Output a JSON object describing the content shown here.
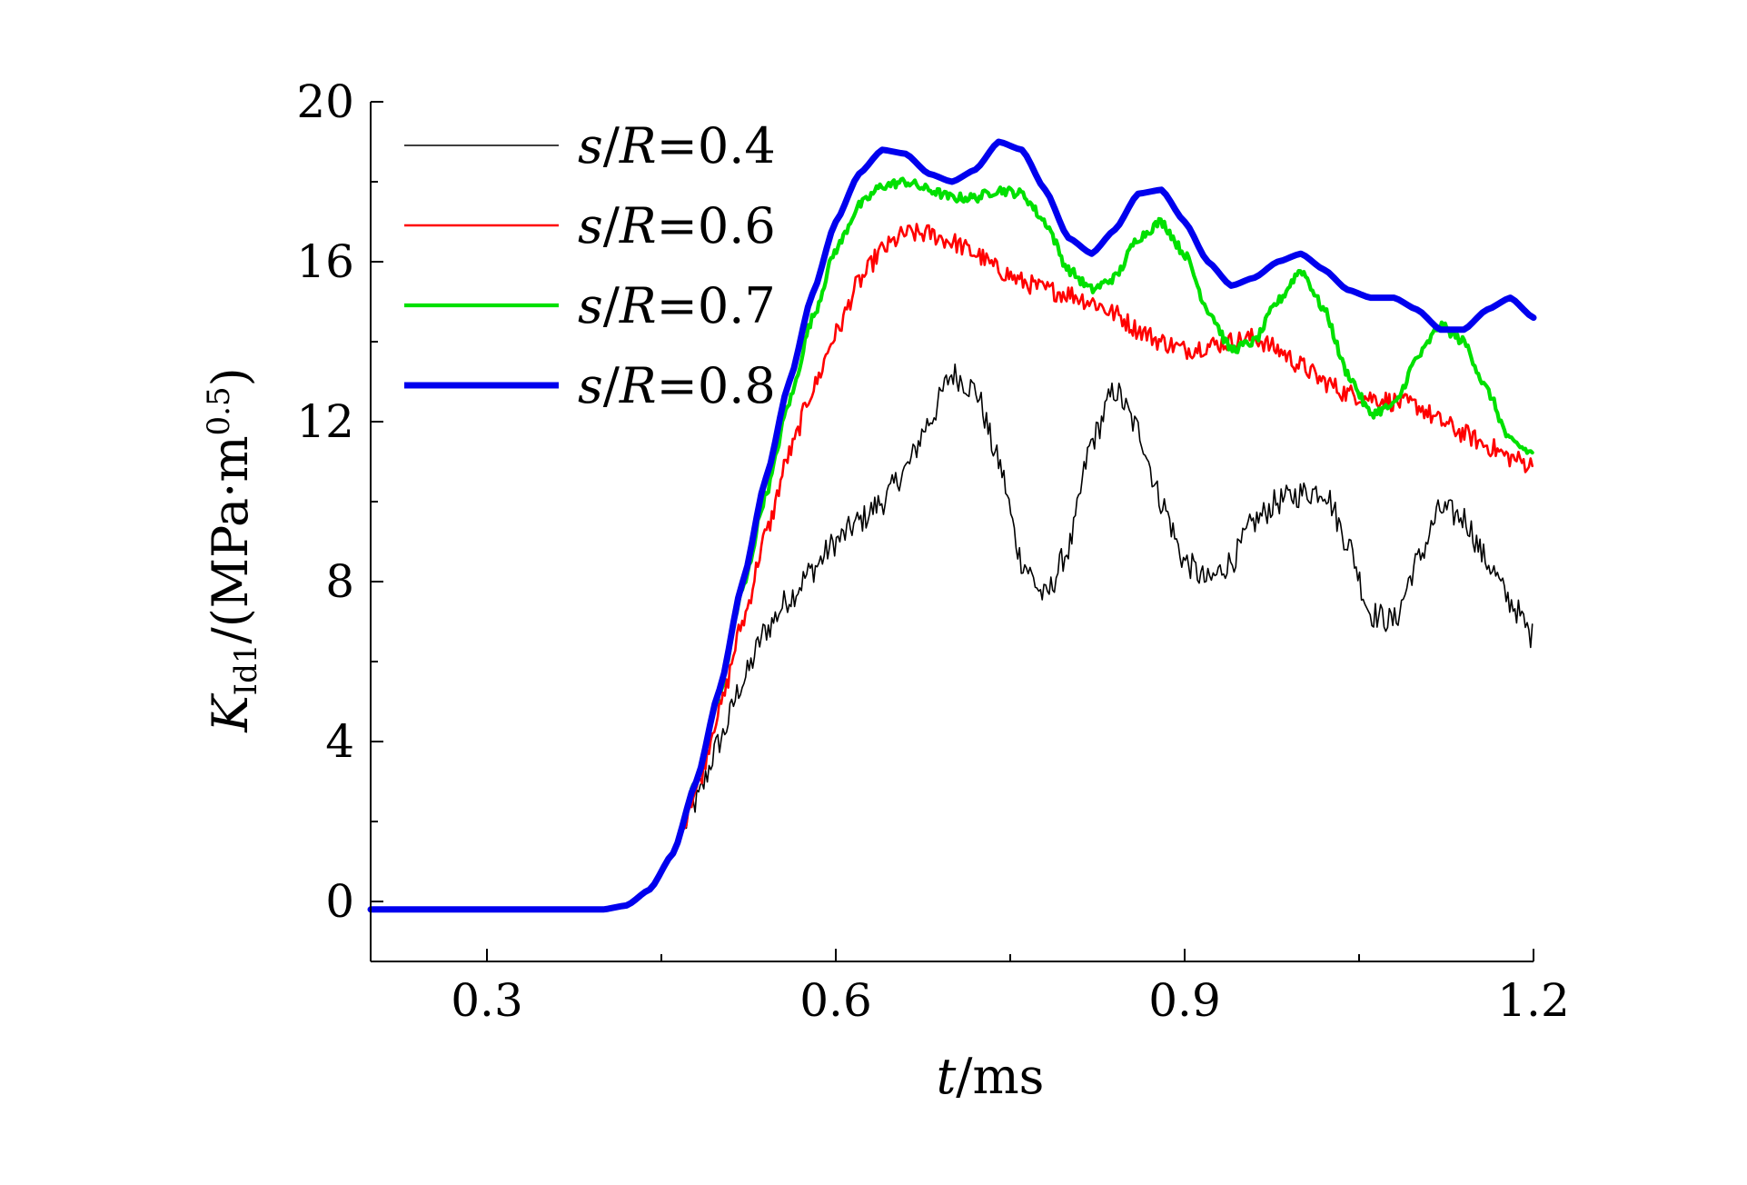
{
  "chart_data": {
    "type": "line",
    "xlabel": {
      "var": "t",
      "unit": "/ms"
    },
    "ylabel": {
      "var": "K",
      "sub": "Id1",
      "unit_pre": "/(MPa·m",
      "sup": "0.5",
      "unit_post": ")"
    },
    "xlim": [
      0.2,
      1.2
    ],
    "ylim": [
      -1.5,
      20
    ],
    "x_ticks": [
      0.3,
      0.6,
      0.9,
      1.2
    ],
    "x_tick_labels": [
      "0.3",
      "0.6",
      "0.9",
      "1.2"
    ],
    "y_ticks": [
      0,
      4,
      8,
      12,
      16,
      20
    ],
    "y_tick_labels": [
      "0",
      "4",
      "8",
      "12",
      "16",
      "20"
    ],
    "grid": false,
    "legend_position": "top-left",
    "series": [
      {
        "name": "s/R=0.4",
        "legend": {
          "var1": "s",
          "sep": "/",
          "var2": "R",
          "rest": "=0.4"
        },
        "color": "#000000",
        "line_width": "thin",
        "noise": 0.35,
        "points": [
          [
            0.2,
            -0.2
          ],
          [
            0.4,
            -0.2
          ],
          [
            0.42,
            -0.1
          ],
          [
            0.44,
            0.3
          ],
          [
            0.46,
            1.2
          ],
          [
            0.48,
            2.5
          ],
          [
            0.5,
            4.0
          ],
          [
            0.52,
            5.5
          ],
          [
            0.54,
            6.8
          ],
          [
            0.56,
            7.6
          ],
          [
            0.58,
            8.3
          ],
          [
            0.6,
            9.0
          ],
          [
            0.62,
            9.5
          ],
          [
            0.64,
            10.0
          ],
          [
            0.66,
            10.8
          ],
          [
            0.68,
            12.0
          ],
          [
            0.7,
            13.2
          ],
          [
            0.72,
            12.8
          ],
          [
            0.74,
            11.0
          ],
          [
            0.76,
            8.5
          ],
          [
            0.78,
            7.6
          ],
          [
            0.8,
            8.8
          ],
          [
            0.82,
            11.5
          ],
          [
            0.84,
            12.8
          ],
          [
            0.86,
            11.8
          ],
          [
            0.88,
            10.0
          ],
          [
            0.9,
            8.5
          ],
          [
            0.92,
            8.0
          ],
          [
            0.94,
            8.5
          ],
          [
            0.96,
            9.5
          ],
          [
            0.98,
            10.0
          ],
          [
            1.0,
            10.2
          ],
          [
            1.02,
            10.3
          ],
          [
            1.04,
            9.0
          ],
          [
            1.06,
            7.2
          ],
          [
            1.08,
            7.0
          ],
          [
            1.1,
            8.5
          ],
          [
            1.12,
            9.8
          ],
          [
            1.14,
            9.6
          ],
          [
            1.16,
            8.5
          ],
          [
            1.18,
            7.5
          ],
          [
            1.2,
            6.6
          ]
        ]
      },
      {
        "name": "s/R=0.6",
        "legend": {
          "var1": "s",
          "sep": "/",
          "var2": "R",
          "rest": "=0.6"
        },
        "color": "#ff0000",
        "line_width": "medium",
        "noise": 0.25,
        "points": [
          [
            0.2,
            -0.2
          ],
          [
            0.4,
            -0.2
          ],
          [
            0.42,
            -0.1
          ],
          [
            0.44,
            0.3
          ],
          [
            0.46,
            1.2
          ],
          [
            0.48,
            2.8
          ],
          [
            0.5,
            4.8
          ],
          [
            0.52,
            7.0
          ],
          [
            0.54,
            9.2
          ],
          [
            0.56,
            11.2
          ],
          [
            0.58,
            12.8
          ],
          [
            0.6,
            14.2
          ],
          [
            0.62,
            15.5
          ],
          [
            0.64,
            16.3
          ],
          [
            0.66,
            16.7
          ],
          [
            0.68,
            16.7
          ],
          [
            0.7,
            16.5
          ],
          [
            0.72,
            16.2
          ],
          [
            0.74,
            15.8
          ],
          [
            0.76,
            15.5
          ],
          [
            0.78,
            15.3
          ],
          [
            0.8,
            15.2
          ],
          [
            0.82,
            15.0
          ],
          [
            0.84,
            14.7
          ],
          [
            0.86,
            14.3
          ],
          [
            0.88,
            14.0
          ],
          [
            0.9,
            13.8
          ],
          [
            0.92,
            13.9
          ],
          [
            0.94,
            14.0
          ],
          [
            0.96,
            14.1
          ],
          [
            0.98,
            13.8
          ],
          [
            1.0,
            13.4
          ],
          [
            1.02,
            13.0
          ],
          [
            1.04,
            12.7
          ],
          [
            1.06,
            12.6
          ],
          [
            1.08,
            12.5
          ],
          [
            1.1,
            12.4
          ],
          [
            1.12,
            12.0
          ],
          [
            1.14,
            11.7
          ],
          [
            1.16,
            11.4
          ],
          [
            1.18,
            11.1
          ],
          [
            1.2,
            10.9
          ]
        ]
      },
      {
        "name": "s/R=0.7",
        "legend": {
          "var1": "s",
          "sep": "/",
          "var2": "R",
          "rest": "=0.7"
        },
        "color": "#00e000",
        "line_width": "thick",
        "noise": 0.12,
        "points": [
          [
            0.2,
            -0.2
          ],
          [
            0.4,
            -0.2
          ],
          [
            0.42,
            -0.1
          ],
          [
            0.44,
            0.3
          ],
          [
            0.46,
            1.2
          ],
          [
            0.48,
            3.0
          ],
          [
            0.5,
            5.2
          ],
          [
            0.52,
            7.8
          ],
          [
            0.54,
            10.2
          ],
          [
            0.56,
            12.5
          ],
          [
            0.58,
            14.6
          ],
          [
            0.6,
            16.3
          ],
          [
            0.62,
            17.4
          ],
          [
            0.64,
            17.9
          ],
          [
            0.66,
            18.0
          ],
          [
            0.68,
            17.8
          ],
          [
            0.7,
            17.6
          ],
          [
            0.72,
            17.6
          ],
          [
            0.74,
            17.8
          ],
          [
            0.76,
            17.7
          ],
          [
            0.78,
            17.0
          ],
          [
            0.8,
            15.8
          ],
          [
            0.82,
            15.3
          ],
          [
            0.84,
            15.6
          ],
          [
            0.86,
            16.6
          ],
          [
            0.88,
            17.0
          ],
          [
            0.9,
            16.2
          ],
          [
            0.92,
            14.8
          ],
          [
            0.94,
            13.8
          ],
          [
            0.96,
            14.0
          ],
          [
            0.98,
            15.0
          ],
          [
            1.0,
            15.8
          ],
          [
            1.02,
            14.8
          ],
          [
            1.04,
            13.2
          ],
          [
            1.06,
            12.2
          ],
          [
            1.08,
            12.4
          ],
          [
            1.1,
            13.6
          ],
          [
            1.12,
            14.4
          ],
          [
            1.14,
            14.0
          ],
          [
            1.16,
            12.8
          ],
          [
            1.18,
            11.5
          ],
          [
            1.2,
            11.2
          ]
        ]
      },
      {
        "name": "s/R=0.8",
        "legend": {
          "var1": "s",
          "sep": "/",
          "var2": "R",
          "rest": "=0.8"
        },
        "color": "#0000ee",
        "line_width": "extra-thick",
        "noise": 0.0,
        "points": [
          [
            0.2,
            -0.2
          ],
          [
            0.4,
            -0.2
          ],
          [
            0.42,
            -0.1
          ],
          [
            0.44,
            0.3
          ],
          [
            0.46,
            1.2
          ],
          [
            0.48,
            3.0
          ],
          [
            0.5,
            5.3
          ],
          [
            0.52,
            8.0
          ],
          [
            0.54,
            10.6
          ],
          [
            0.56,
            13.0
          ],
          [
            0.58,
            15.2
          ],
          [
            0.6,
            17.0
          ],
          [
            0.62,
            18.2
          ],
          [
            0.64,
            18.8
          ],
          [
            0.66,
            18.7
          ],
          [
            0.68,
            18.2
          ],
          [
            0.7,
            18.0
          ],
          [
            0.72,
            18.3
          ],
          [
            0.74,
            19.0
          ],
          [
            0.76,
            18.8
          ],
          [
            0.78,
            17.8
          ],
          [
            0.8,
            16.6
          ],
          [
            0.82,
            16.2
          ],
          [
            0.84,
            16.8
          ],
          [
            0.86,
            17.7
          ],
          [
            0.88,
            17.8
          ],
          [
            0.9,
            17.0
          ],
          [
            0.92,
            16.0
          ],
          [
            0.94,
            15.4
          ],
          [
            0.96,
            15.6
          ],
          [
            0.98,
            16.0
          ],
          [
            1.0,
            16.2
          ],
          [
            1.02,
            15.8
          ],
          [
            1.04,
            15.3
          ],
          [
            1.06,
            15.1
          ],
          [
            1.08,
            15.1
          ],
          [
            1.1,
            14.8
          ],
          [
            1.12,
            14.3
          ],
          [
            1.14,
            14.3
          ],
          [
            1.16,
            14.8
          ],
          [
            1.18,
            15.1
          ],
          [
            1.2,
            14.6
          ]
        ]
      }
    ]
  }
}
